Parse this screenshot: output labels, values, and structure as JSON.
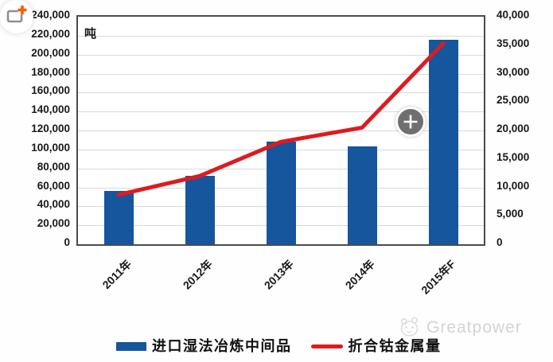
{
  "chart_data": {
    "type": "bar",
    "title": "",
    "categories": [
      "2011年",
      "2012年",
      "2013年",
      "2014年",
      "2015年F"
    ],
    "series": [
      {
        "name": "进口湿法冶炼中间品",
        "type": "bar",
        "axis": "left",
        "color": "#15569d",
        "values": [
          56000,
          72000,
          108000,
          103000,
          216000
        ]
      },
      {
        "name": "折合钴金属量",
        "type": "line",
        "axis": "right",
        "color": "#dd1b20",
        "values": [
          8700,
          12000,
          18000,
          20500,
          35300
        ]
      }
    ],
    "left_axis": {
      "unit": "吨",
      "min": 0,
      "max": 240000,
      "step": 20000
    },
    "right_axis": {
      "min": 0,
      "max": 40000,
      "step": 5000
    },
    "grid": true,
    "legend_position": "bottom"
  },
  "watermark": {
    "brand": "Greatpower"
  },
  "colors": {
    "bar_blue": "#15569d",
    "line_red": "#dd1b20",
    "gridline": "#d9d9d9",
    "plot_border": "#4b4b4b",
    "axis_text": "#191919",
    "watermark_grey": "#d3d3d3",
    "zoom_button_grey": "#6f6f6f",
    "corner_plus_orange": "#ff5a00"
  }
}
